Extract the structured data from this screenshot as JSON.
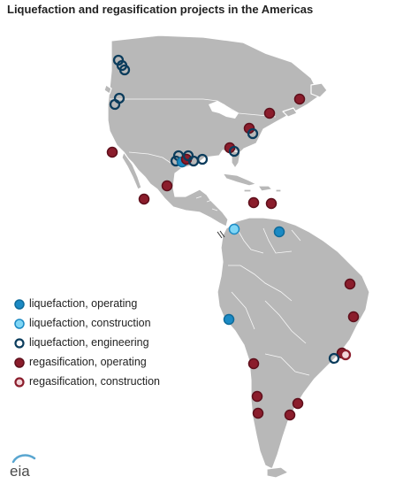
{
  "title": "Liquefaction and regasification projects in the Americas",
  "colors": {
    "land": "#b8b8b8",
    "land_stroke": "#ffffff",
    "liquefaction_operating": "#1b8ac4",
    "liquefaction_construction": "#7fd6f5",
    "liquefaction_engineering": "#0b3c5c",
    "regasification_operating": "#8b1d2c",
    "regasification_construction": "#8b1d2c"
  },
  "legend": [
    {
      "type": "liquefaction_operating",
      "label": "liquefaction, operating"
    },
    {
      "type": "liquefaction_construction",
      "label": "liquefaction, construction"
    },
    {
      "type": "liquefaction_engineering",
      "label": "liquefaction, engineering"
    },
    {
      "type": "regasification_operating",
      "label": "regasification, operating"
    },
    {
      "type": "regasification_construction",
      "label": "regasification, construction"
    }
  ],
  "logo": {
    "text": "eia",
    "icon": "eia-logo-icon"
  }
}
